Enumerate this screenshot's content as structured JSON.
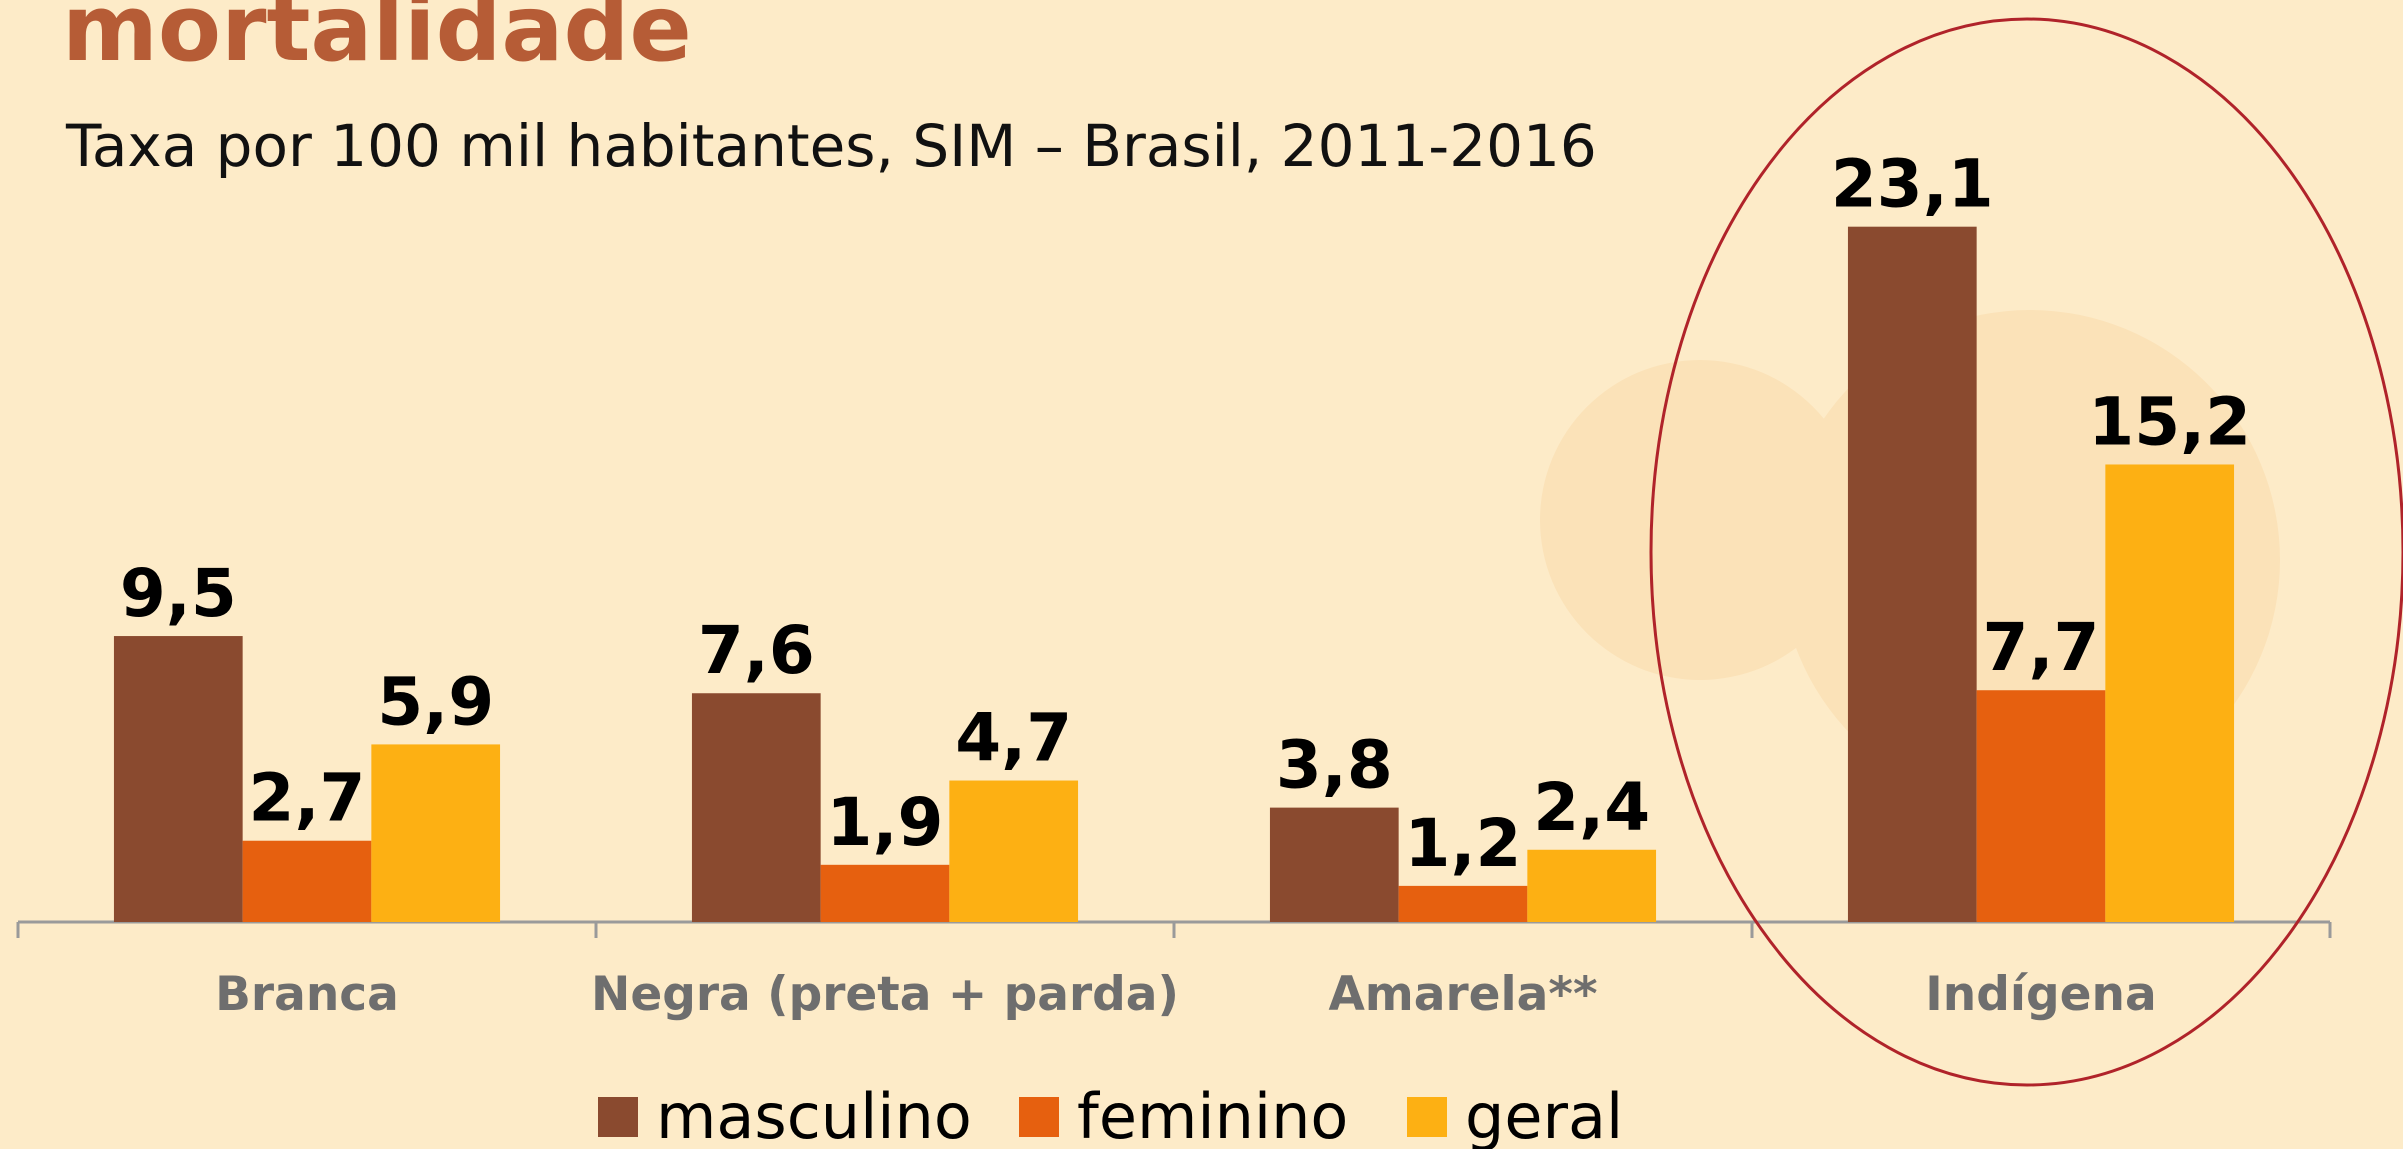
{
  "chart_data": {
    "type": "bar",
    "title": "mortalidade",
    "subtitle": "Taxa por 100 mil habitantes, SIM – Brasil, 2011-2016",
    "categories": [
      "Branca",
      "Negra (preta + parda)",
      "Amarela**",
      "Indígena"
    ],
    "series": [
      {
        "name": "masculino",
        "color": "#8a4a2f",
        "values": [
          9.5,
          7.6,
          3.8,
          23.1
        ],
        "value_labels": [
          "9,5",
          "7,6",
          "3,8",
          "23,1"
        ]
      },
      {
        "name": "feminino",
        "color": "#e6600f",
        "values": [
          2.7,
          1.9,
          1.2,
          7.7
        ],
        "value_labels": [
          "2,7",
          "1,9",
          "1,2",
          "7,7"
        ]
      },
      {
        "name": "geral",
        "color": "#fdb013",
        "values": [
          5.9,
          4.7,
          2.4,
          15.2
        ],
        "value_labels": [
          "5,9",
          "4,7",
          "2,4",
          "15,2"
        ]
      }
    ]
  }
}
